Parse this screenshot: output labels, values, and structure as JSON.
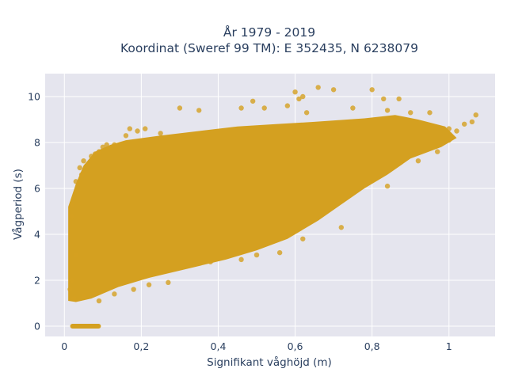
{
  "chart_data": {
    "type": "scatter",
    "title": "År 1979 - 2019",
    "subtitle": "Koordinat (Sweref 99 TM): E 352435, N 6238079",
    "xlabel": "Signifikant våghöjd (m)",
    "ylabel": "Vågperiod (s)",
    "xlim": [
      -0.05,
      1.12
    ],
    "ylim": [
      -0.45,
      11.0
    ],
    "x_ticks": [
      0,
      0.2,
      0.4,
      0.6,
      0.8,
      1
    ],
    "x_tick_labels": [
      "0",
      "0,2",
      "0,4",
      "0,6",
      "0,8",
      "1"
    ],
    "y_ticks": [
      0,
      2,
      4,
      6,
      8,
      10
    ],
    "y_tick_labels": [
      "0",
      "2",
      "4",
      "6",
      "8",
      "10"
    ],
    "grid": true,
    "plot_background": "#e5e5ee",
    "marker_color": "#d4a020",
    "series": [
      {
        "points": [
          [
            0.015,
            1.6
          ],
          [
            0.02,
            2.0
          ],
          [
            0.02,
            5.3
          ],
          [
            0.02,
            4.8
          ],
          [
            0.025,
            1.2
          ],
          [
            0.03,
            6.3
          ],
          [
            0.03,
            3.1
          ],
          [
            0.04,
            6.9
          ],
          [
            0.045,
            6.6
          ],
          [
            0.05,
            7.2
          ],
          [
            0.05,
            1.3
          ],
          [
            0.06,
            7.0
          ],
          [
            0.07,
            7.4
          ],
          [
            0.08,
            7.5
          ],
          [
            0.09,
            7.6
          ],
          [
            0.1,
            7.8
          ],
          [
            0.11,
            7.9
          ],
          [
            0.13,
            7.9
          ],
          [
            0.13,
            1.4
          ],
          [
            0.16,
            8.3
          ],
          [
            0.17,
            8.6
          ],
          [
            0.19,
            8.5
          ],
          [
            0.21,
            8.6
          ],
          [
            0.25,
            8.4
          ],
          [
            0.3,
            9.5
          ],
          [
            0.3,
            8.2
          ],
          [
            0.35,
            9.4
          ],
          [
            0.38,
            2.8
          ],
          [
            0.46,
            9.5
          ],
          [
            0.49,
            9.8
          ],
          [
            0.52,
            9.5
          ],
          [
            0.58,
            9.6
          ],
          [
            0.6,
            10.2
          ],
          [
            0.61,
            9.9
          ],
          [
            0.62,
            10.0
          ],
          [
            0.63,
            9.3
          ],
          [
            0.66,
            10.4
          ],
          [
            0.7,
            10.3
          ],
          [
            0.72,
            4.3
          ],
          [
            0.75,
            9.5
          ],
          [
            0.8,
            10.3
          ],
          [
            0.83,
            9.9
          ],
          [
            0.84,
            9.4
          ],
          [
            0.87,
            9.9
          ],
          [
            0.9,
            9.3
          ],
          [
            0.95,
            9.3
          ],
          [
            1.0,
            8.6
          ],
          [
            1.0,
            8.1
          ],
          [
            1.02,
            8.5
          ],
          [
            1.04,
            8.8
          ],
          [
            1.07,
            9.2
          ],
          [
            1.06,
            8.9
          ],
          [
            0.46,
            2.9
          ],
          [
            0.5,
            3.1
          ],
          [
            0.56,
            3.2
          ],
          [
            0.62,
            3.8
          ],
          [
            0.84,
            6.1
          ],
          [
            0.92,
            7.2
          ],
          [
            0.97,
            7.6
          ],
          [
            0.27,
            1.9
          ],
          [
            0.22,
            1.8
          ],
          [
            0.18,
            1.6
          ],
          [
            0.09,
            1.1
          ]
        ]
      }
    ]
  }
}
